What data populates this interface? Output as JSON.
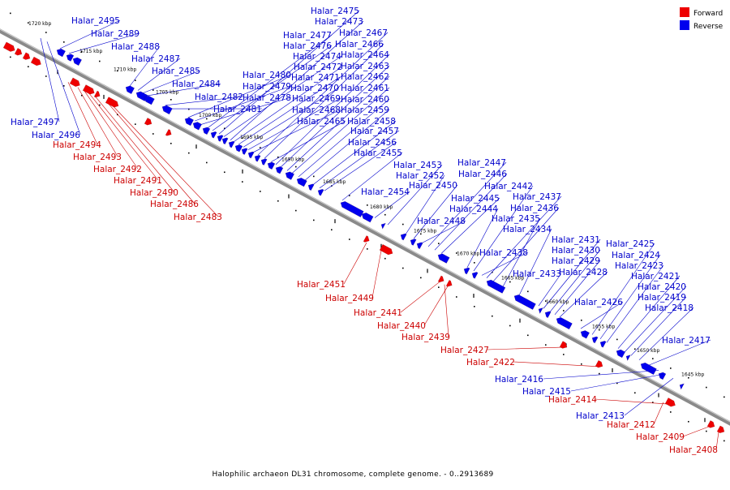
{
  "caption": "Halophilic archaeon DL31 chromosome, complete genome. - 0..2913689",
  "legend": {
    "forward_label": "Forward",
    "reverse_label": "Reverse"
  },
  "colors": {
    "forward": "#ee0000",
    "reverse": "#0000ee",
    "backbone": "#888888",
    "forward_label": "#cc0000",
    "reverse_label": "#0000cc"
  },
  "kbp_labels": [
    "1720 kbp",
    "1715 kbp",
    "1710 kbp",
    "1705 kbp",
    "1700 kbp",
    "1695 kbp",
    "1690 kbp",
    "1685 kbp",
    "1680 kbp",
    "1675 kbp",
    "1670 kbp",
    "1665 kbp",
    "1660 kbp",
    "1655 kbp",
    "1650 kbp",
    "1645 kbp"
  ],
  "reverse_labels": [
    "Halar_2497",
    "Halar_2496",
    "Halar_2495",
    "Halar_2489",
    "Halar_2488",
    "Halar_2487",
    "Halar_2485",
    "Halar_2484",
    "Halar_2482",
    "Halar_2481",
    "Halar_2480",
    "Halar_2479",
    "Halar_2478",
    "Halar_2477",
    "Halar_2476",
    "Halar_2475",
    "Halar_2474",
    "Halar_2473",
    "Halar_2472",
    "Halar_2471",
    "Halar_2470",
    "Halar_2469",
    "Halar_2468",
    "Halar_2467",
    "Halar_2466",
    "Halar_2465",
    "Halar_2464",
    "Halar_2463",
    "Halar_2462",
    "Halar_2461",
    "Halar_2460",
    "Halar_2459",
    "Halar_2458",
    "Halar_2457",
    "Halar_2456",
    "Halar_2455",
    "Halar_2454",
    "Halar_2453",
    "Halar_2452",
    "Halar_2450",
    "Halar_2448",
    "Halar_2447",
    "Halar_2446",
    "Halar_2445",
    "Halar_2444",
    "Halar_2442",
    "Halar_2438",
    "Halar_2437",
    "Halar_2436",
    "Halar_2435",
    "Halar_2434",
    "Halar_2433",
    "Halar_2431",
    "Halar_2430",
    "Halar_2429",
    "Halar_2428",
    "Halar_2426",
    "Halar_2425",
    "Halar_2424",
    "Halar_2423",
    "Halar_2421",
    "Halar_2420",
    "Halar_2419",
    "Halar_2418",
    "Halar_2417",
    "Halar_2416",
    "Halar_2415",
    "Halar_2413"
  ],
  "forward_labels": [
    "Halar_2494",
    "Halar_2493",
    "Halar_2492",
    "Halar_2491",
    "Halar_2490",
    "Halar_2486",
    "Halar_2483",
    "Halar_2451",
    "Halar_2449",
    "Halar_2441",
    "Halar_2440",
    "Halar_2439",
    "Halar_2427",
    "Halar_2422",
    "Halar_2414",
    "Halar_2412",
    "Halar_2409",
    "Halar_2408"
  ]
}
